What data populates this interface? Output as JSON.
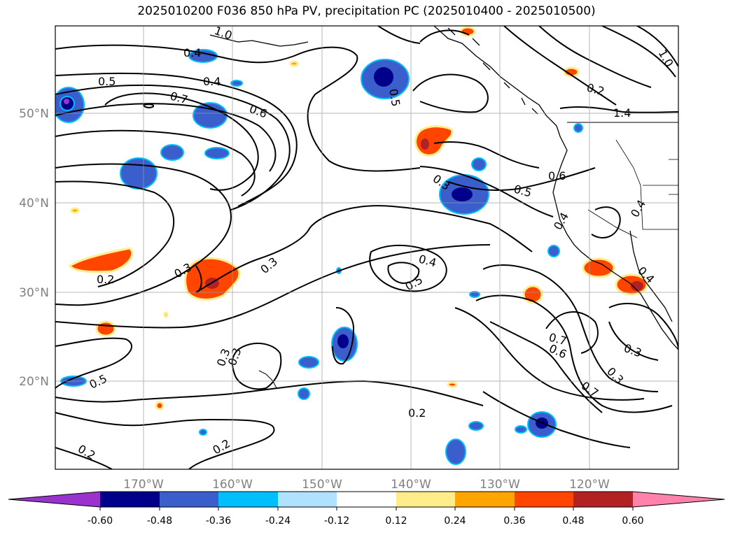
{
  "title": "2025010200 F036 850 hPa PV, precipitation PC (2025010400 - 2025010500)",
  "axes": {
    "lon_ticks": [
      "170°W",
      "160°W",
      "150°W",
      "140°W",
      "130°W",
      "120°W"
    ],
    "lat_ticks": [
      "50°N",
      "40°N",
      "30°N",
      "20°N"
    ]
  },
  "colorbar": {
    "labels": [
      "-0.60",
      "-0.48",
      "-0.36",
      "-0.24",
      "-0.12",
      "0.12",
      "0.24",
      "0.36",
      "0.48",
      "0.60"
    ],
    "colors": [
      "#9a32cd",
      "#00008b",
      "#3a5fcd",
      "#00bfff",
      "#b0e2ff",
      "#ffffff",
      "#ffec8b",
      "#ffa500",
      "#ff4500",
      "#b22222",
      "#ff82ab"
    ]
  },
  "contour_labels": [
    "0.4",
    "0.5",
    "0.4",
    "0.7",
    "0.6",
    "0.3",
    "0.5",
    "0.3",
    "0.3",
    "0.2",
    "0.3",
    "0.3",
    "0.4",
    "0.5",
    "0.5",
    "0.6",
    "0.4",
    "0.4",
    "0.4",
    "0.3",
    "0.3",
    "0.7",
    "0.6",
    "0.7",
    "0.5",
    "0.2",
    "0.2",
    "0.2",
    "0.2",
    "1.4",
    "1.0",
    "1.0",
    "0.5",
    "0.5"
  ],
  "precip_colors": {
    "neg_light": "#00bfff",
    "neg_mid": "#3a5fcd",
    "neg_dark": "#00008b",
    "neg_max": "#9a32cd",
    "pos_light": "#ffa500",
    "pos_mid": "#ff4500",
    "pos_dark": "#b22222",
    "pos_edge": "#ffec8b"
  }
}
